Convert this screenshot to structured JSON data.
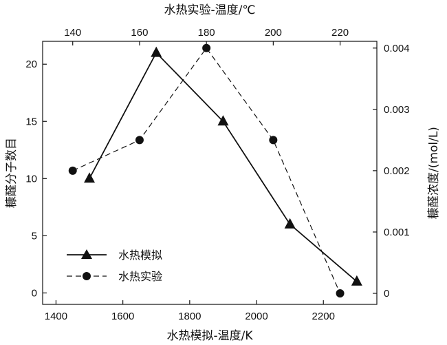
{
  "chart_data": {
    "type": "line",
    "title": "",
    "xlabel_bottom": "水热模拟-温度/K",
    "xlabel_top": "水热实验-温度/℃",
    "ylabel_left": "糠醛分子数目",
    "ylabel_right": "糠醛浓度/(mol/L)",
    "x_bottom": {
      "range": [
        1360,
        2360
      ],
      "ticks": [
        1400,
        1600,
        1800,
        2000,
        2200
      ]
    },
    "x_top": {
      "range": [
        131,
        231
      ],
      "ticks": [
        140,
        160,
        180,
        200,
        220
      ]
    },
    "y_left": {
      "range": [
        -1,
        22
      ],
      "ticks": [
        0,
        5,
        10,
        15,
        20
      ]
    },
    "y_right": {
      "range": [
        -0.00018,
        0.00411
      ],
      "ticks": [
        "0",
        "0.001",
        "0.002",
        "0.003",
        "0.004"
      ]
    },
    "legend_position": "bottom-left",
    "grid": false,
    "series": [
      {
        "name": "水热模拟",
        "axis": "bottom-left",
        "marker": "triangle",
        "line_style": "solid",
        "x": [
          1500,
          1700,
          1900,
          2100,
          2300
        ],
        "y": [
          10,
          21,
          15,
          6,
          1
        ]
      },
      {
        "name": "水热实验",
        "axis": "top-right",
        "marker": "circle",
        "line_style": "dashed",
        "x": [
          140,
          160,
          180,
          200,
          220
        ],
        "y": [
          0.002,
          0.0025,
          0.004,
          0.0025,
          0.0
        ]
      }
    ]
  }
}
